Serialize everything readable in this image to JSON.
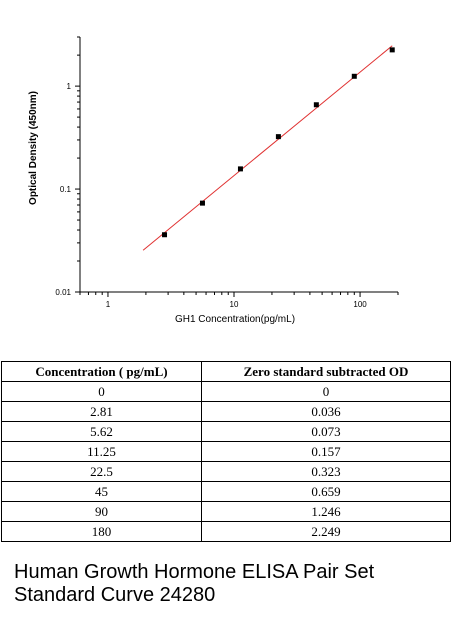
{
  "chart_data": {
    "type": "scatter",
    "title": "",
    "xlabel": "GH1  Concentration(pg/mL)",
    "ylabel": "Optical Density (450nm)",
    "x_scale": "log",
    "y_scale": "log",
    "xlim": [
      0.6,
      200
    ],
    "ylim": [
      0.01,
      3
    ],
    "x_ticks": [
      {
        "value": 1,
        "label": "1"
      },
      {
        "value": 10,
        "label": "10"
      },
      {
        "value": 100,
        "label": "100"
      }
    ],
    "y_ticks": [
      {
        "value": 0.01,
        "label": "0.01"
      },
      {
        "value": 0.1,
        "label": "0.1"
      },
      {
        "value": 1,
        "label": "1"
      }
    ],
    "grid": false,
    "points": [
      {
        "x": 2.81,
        "y": 0.036
      },
      {
        "x": 5.62,
        "y": 0.073
      },
      {
        "x": 11.25,
        "y": 0.157
      },
      {
        "x": 22.5,
        "y": 0.323
      },
      {
        "x": 45,
        "y": 0.659
      },
      {
        "x": 90,
        "y": 1.246
      },
      {
        "x": 180,
        "y": 2.249
      }
    ],
    "fit_line": {
      "x_start": 1.9,
      "x_end": 180,
      "color": "#e03030"
    },
    "marker_color": "#000000"
  },
  "table": {
    "headers": [
      "Concentration ( pg/mL)",
      "Zero standard subtracted OD"
    ],
    "rows": [
      [
        "0",
        "0"
      ],
      [
        "2.81",
        "0.036"
      ],
      [
        "5.62",
        "0.073"
      ],
      [
        "11.25",
        "0.157"
      ],
      [
        "22.5",
        "0.323"
      ],
      [
        "45",
        "0.659"
      ],
      [
        "90",
        "1.246"
      ],
      [
        "180",
        "2.249"
      ]
    ]
  },
  "caption": {
    "line1": "Human Growth Hormone ELISA Pair Set",
    "line2": "Standard Curve 24280"
  }
}
